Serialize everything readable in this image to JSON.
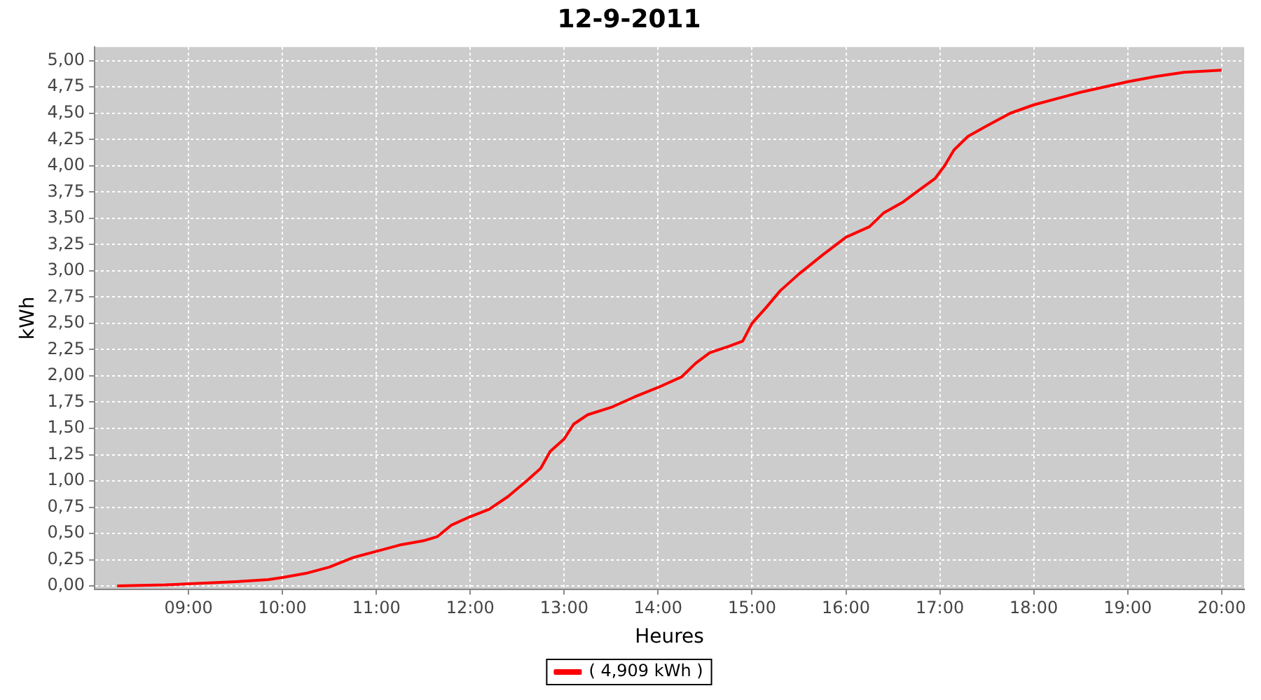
{
  "chart_data": {
    "type": "line",
    "title": "12-9-2011",
    "xlabel": "Heures",
    "ylabel": "kWh",
    "xlim": [
      8.0,
      20.24
    ],
    "ylim": [
      -0.03,
      5.13
    ],
    "xticks": [
      {
        "value": 9,
        "label": "09:00"
      },
      {
        "value": 10,
        "label": "10:00"
      },
      {
        "value": 11,
        "label": "11:00"
      },
      {
        "value": 12,
        "label": "12:00"
      },
      {
        "value": 13,
        "label": "13:00"
      },
      {
        "value": 14,
        "label": "14:00"
      },
      {
        "value": 15,
        "label": "15:00"
      },
      {
        "value": 16,
        "label": "16:00"
      },
      {
        "value": 17,
        "label": "17:00"
      },
      {
        "value": 18,
        "label": "18:00"
      },
      {
        "value": 19,
        "label": "19:00"
      },
      {
        "value": 20,
        "label": "20:00"
      }
    ],
    "yticks": [
      {
        "value": 0,
        "label": "0,00"
      },
      {
        "value": 0.25,
        "label": "0,25"
      },
      {
        "value": 0.5,
        "label": "0,50"
      },
      {
        "value": 0.75,
        "label": "0,75"
      },
      {
        "value": 1,
        "label": "1,00"
      },
      {
        "value": 1.25,
        "label": "1,25"
      },
      {
        "value": 1.5,
        "label": "1,50"
      },
      {
        "value": 1.75,
        "label": "1,75"
      },
      {
        "value": 2,
        "label": "2,00"
      },
      {
        "value": 2.25,
        "label": "2,25"
      },
      {
        "value": 2.5,
        "label": "2,50"
      },
      {
        "value": 2.75,
        "label": "2,75"
      },
      {
        "value": 3,
        "label": "3,00"
      },
      {
        "value": 3.25,
        "label": "3,25"
      },
      {
        "value": 3.5,
        "label": "3,50"
      },
      {
        "value": 3.75,
        "label": "3,75"
      },
      {
        "value": 4,
        "label": "4,00"
      },
      {
        "value": 4.25,
        "label": "4,25"
      },
      {
        "value": 4.5,
        "label": "4,50"
      },
      {
        "value": 4.75,
        "label": "4,75"
      },
      {
        "value": 5,
        "label": "5,00"
      }
    ],
    "grid": true,
    "legend": "bottom",
    "marker": "none",
    "line_style": "solid",
    "series": [
      {
        "name": "( 4,909 kWh )",
        "color": "#ff0000",
        "x": [
          8.24,
          8.75,
          9.0,
          9.5,
          9.85,
          10.0,
          10.25,
          10.5,
          10.75,
          11.0,
          11.25,
          11.5,
          11.65,
          11.8,
          12.0,
          12.2,
          12.4,
          12.6,
          12.75,
          12.85,
          13.0,
          13.1,
          13.25,
          13.5,
          13.75,
          14.0,
          14.25,
          14.4,
          14.55,
          14.75,
          14.9,
          15.0,
          15.15,
          15.3,
          15.5,
          15.75,
          16.0,
          16.25,
          16.4,
          16.6,
          16.75,
          16.95,
          17.05,
          17.15,
          17.3,
          17.5,
          17.75,
          18.0,
          18.5,
          19.0,
          19.3,
          19.6,
          20.0
        ],
        "values": [
          0.0,
          0.01,
          0.02,
          0.04,
          0.06,
          0.08,
          0.12,
          0.18,
          0.27,
          0.33,
          0.39,
          0.43,
          0.47,
          0.58,
          0.66,
          0.73,
          0.85,
          1.0,
          1.12,
          1.28,
          1.4,
          1.54,
          1.63,
          1.7,
          1.8,
          1.89,
          1.99,
          2.12,
          2.22,
          2.28,
          2.33,
          2.5,
          2.65,
          2.81,
          2.97,
          3.15,
          3.32,
          3.42,
          3.55,
          3.65,
          3.75,
          3.88,
          4.0,
          4.15,
          4.28,
          4.38,
          4.5,
          4.58,
          4.7,
          4.8,
          4.85,
          4.89,
          4.91
        ]
      }
    ]
  }
}
